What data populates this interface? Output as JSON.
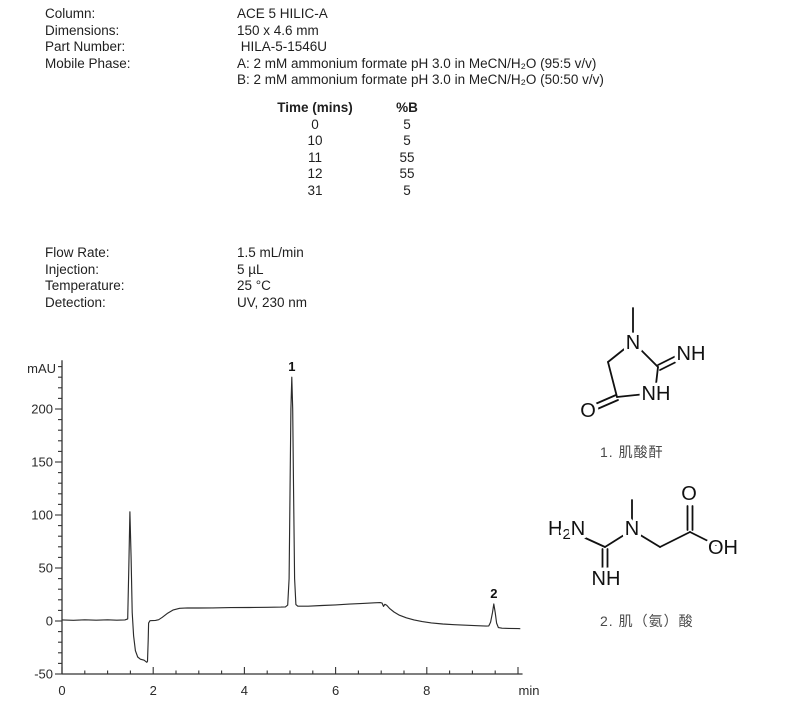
{
  "page": {
    "bg": "#ffffff",
    "text_color": "#1f1f1f",
    "accent": "#111111"
  },
  "specs_top": [
    {
      "label": "Column:",
      "value": "ACE 5 HILIC-A"
    },
    {
      "label": "Dimensions:",
      "value": "150 x 4.6 mm"
    },
    {
      "label": "Part Number:",
      "value": " HILA-5-1546U"
    },
    {
      "label": "Mobile Phase:",
      "value": "A: 2 mM ammonium formate pH 3.0 in MeCN/H₂O (95:5 v/v)"
    },
    {
      "label": "",
      "value": "B: 2 mM ammonium formate pH 3.0 in MeCN/H₂O (50:50 v/v)"
    }
  ],
  "gradient_table": {
    "headers": [
      "Time (mins)",
      "%B"
    ],
    "rows": [
      [
        "0",
        "5"
      ],
      [
        "10",
        "5"
      ],
      [
        "11",
        "55"
      ],
      [
        "12",
        "55"
      ],
      [
        "31",
        "5"
      ]
    ]
  },
  "specs_bottom": [
    {
      "label": "Flow Rate:",
      "value": "1.5 mL/min"
    },
    {
      "label": "Injection:",
      "value": "5 µL"
    },
    {
      "label": "Temperature:",
      "value": "25 °C"
    },
    {
      "label": "Detection:",
      "value": "UV, 230 nm"
    }
  ],
  "chart_data": {
    "type": "line",
    "title": "",
    "xlabel": "min",
    "ylabel": "mAU",
    "xlim": [
      0,
      10.1
    ],
    "ylim": [
      -50,
      246
    ],
    "x_labeled_ticks": [
      0,
      2,
      4,
      6,
      8
    ],
    "x_major_ticks": [
      0,
      2,
      4,
      6,
      8,
      10
    ],
    "x_minor_step": 0.5,
    "y_major_ticks": [
      -50,
      0,
      50,
      100,
      150,
      200
    ],
    "y_minor_step": 10,
    "grid": false,
    "legend": "none",
    "line_color": "#2b2b2b",
    "peaks": [
      {
        "label": "1",
        "time": 5.04,
        "apex_mAU": 230
      },
      {
        "label": "2",
        "time": 9.47,
        "apex_mAU": 16
      }
    ],
    "trace": [
      [
        0,
        1
      ],
      [
        0.25,
        0.7
      ],
      [
        0.5,
        1.1
      ],
      [
        0.75,
        0.8
      ],
      [
        1.0,
        1.1
      ],
      [
        1.2,
        0.8
      ],
      [
        1.38,
        1
      ],
      [
        1.44,
        2
      ],
      [
        1.465,
        50
      ],
      [
        1.49,
        103
      ],
      [
        1.515,
        60
      ],
      [
        1.54,
        8
      ],
      [
        1.57,
        -14
      ],
      [
        1.61,
        -28
      ],
      [
        1.66,
        -34
      ],
      [
        1.72,
        -36
      ],
      [
        1.8,
        -37
      ],
      [
        1.86,
        -39
      ],
      [
        1.875,
        -38
      ],
      [
        1.89,
        -18
      ],
      [
        1.9,
        -2
      ],
      [
        1.93,
        0.3
      ],
      [
        2.05,
        0.6
      ],
      [
        2.12,
        1.2
      ],
      [
        2.2,
        3.5
      ],
      [
        2.32,
        7.5
      ],
      [
        2.44,
        10.5
      ],
      [
        2.58,
        12
      ],
      [
        2.75,
        12.4
      ],
      [
        3.0,
        12.3
      ],
      [
        3.3,
        12.4
      ],
      [
        3.7,
        12.6
      ],
      [
        4.1,
        12.7
      ],
      [
        4.5,
        12.9
      ],
      [
        4.8,
        13.1
      ],
      [
        4.9,
        13.3
      ],
      [
        4.95,
        15
      ],
      [
        4.98,
        40
      ],
      [
        5.0,
        120
      ],
      [
        5.02,
        200
      ],
      [
        5.04,
        230
      ],
      [
        5.06,
        200
      ],
      [
        5.08,
        120
      ],
      [
        5.1,
        40
      ],
      [
        5.13,
        15.5
      ],
      [
        5.17,
        14
      ],
      [
        5.4,
        14
      ],
      [
        5.7,
        14.6
      ],
      [
        6.0,
        15.2
      ],
      [
        6.3,
        15.9
      ],
      [
        6.6,
        16.6
      ],
      [
        6.85,
        17.2
      ],
      [
        6.98,
        17.4
      ],
      [
        7.02,
        16.9
      ],
      [
        7.05,
        13.8
      ],
      [
        7.08,
        15.8
      ],
      [
        7.12,
        14.8
      ],
      [
        7.18,
        12
      ],
      [
        7.28,
        8.5
      ],
      [
        7.4,
        5.5
      ],
      [
        7.55,
        3
      ],
      [
        7.72,
        1
      ],
      [
        7.9,
        -0.6
      ],
      [
        8.1,
        -1.8
      ],
      [
        8.35,
        -2.8
      ],
      [
        8.6,
        -3.5
      ],
      [
        8.85,
        -4
      ],
      [
        9.1,
        -4.4
      ],
      [
        9.3,
        -4.8
      ],
      [
        9.36,
        -4.6
      ],
      [
        9.4,
        -1
      ],
      [
        9.44,
        8
      ],
      [
        9.47,
        16
      ],
      [
        9.5,
        8
      ],
      [
        9.53,
        -2
      ],
      [
        9.57,
        -6.2
      ],
      [
        9.65,
        -6.8
      ],
      [
        9.8,
        -7
      ],
      [
        10.0,
        -7.2
      ],
      [
        10.05,
        -7.3
      ]
    ]
  },
  "structures": [
    {
      "caption": "1. 肌酸酐",
      "atoms": {
        "n": "N",
        "nh_exo": "NH",
        "nh_ring": "NH",
        "o": "O"
      }
    },
    {
      "caption": "2. 肌（氨）酸",
      "atoms": {
        "h": "H",
        "sub": "2",
        "n_left": "N",
        "n": "N",
        "nh": "NH",
        "o": "O",
        "oh": "OH"
      }
    }
  ]
}
